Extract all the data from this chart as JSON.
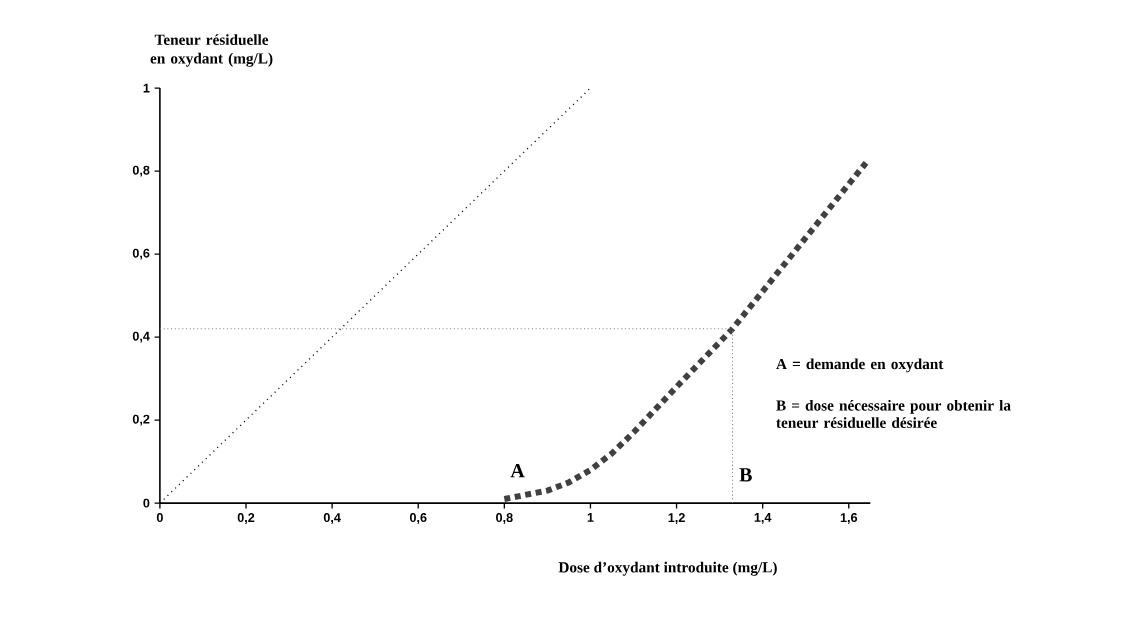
{
  "chart_data": {
    "type": "line",
    "xlabel": "Dose d’oxydant introduite (mg/L)",
    "ylabel": "Teneur résiduelle en oxydant (mg/L)",
    "xlim": [
      0,
      1.65
    ],
    "ylim": [
      0,
      1
    ],
    "xticks": [
      0,
      {
        "value": 0.2,
        "label": "0,2"
      },
      {
        "value": 0.4,
        "label": "0,4"
      },
      {
        "value": 0.6,
        "label": "0,6"
      },
      {
        "value": 0.8,
        "label": "0,8"
      },
      1,
      {
        "value": 1.2,
        "label": "1,2"
      },
      {
        "value": 1.4,
        "label": "1,4"
      },
      {
        "value": 1.6,
        "label": "1,6"
      }
    ],
    "yticks": [
      0,
      {
        "value": 0.2,
        "label": "0,2"
      },
      {
        "value": 0.4,
        "label": "0,4"
      },
      {
        "value": 0.6,
        "label": "0,6"
      },
      {
        "value": 0.8,
        "label": "0,8"
      },
      1
    ],
    "series": [
      {
        "line_style": "dotted",
        "color": "#000000",
        "x": [
          0,
          1
        ],
        "values": [
          0,
          1
        ]
      },
      {
        "line_style": "dotted",
        "color": "#404040",
        "x": [
          0.8,
          0.9,
          0.95,
          1.0,
          1.05,
          1.1,
          1.2,
          1.33,
          1.64
        ],
        "values": [
          0.01,
          0.03,
          0.05,
          0.08,
          0.12,
          0.17,
          0.28,
          0.42,
          0.82
        ]
      }
    ],
    "ref_lines": [
      {
        "axis": "y",
        "value": 0.42,
        "color": "#808080",
        "line_style": "dotted"
      },
      {
        "axis": "x",
        "value": 1.33,
        "color": "#808080",
        "line_style": "dotted"
      }
    ],
    "annotations": [
      {
        "text": "A",
        "x": 0.8,
        "y": 0.01
      },
      {
        "text": "B",
        "x": 1.33,
        "y": 0
      },
      "A = demande en oxydant",
      "B = dose nécessaire pour obtenir la teneur résiduelle désirée"
    ]
  }
}
